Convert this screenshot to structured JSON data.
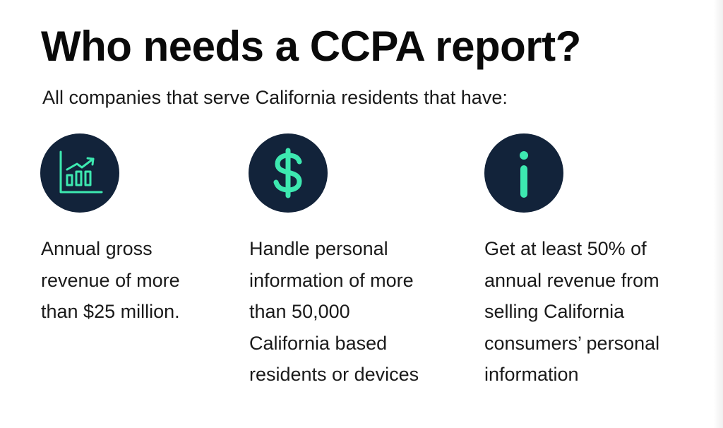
{
  "heading": {
    "title": "Who needs a CCPA report?",
    "subtitle": "All companies that serve California residents that have:"
  },
  "colors": {
    "icon_circle": "#12233a",
    "icon_accent": "#3de8b0",
    "text": "#1a1a1a"
  },
  "criteria": [
    {
      "icon": "growth-chart-icon",
      "lines": [
        "Annual gross",
        "revenue of more",
        "than $25 million."
      ]
    },
    {
      "icon": "dollar-sign-icon",
      "lines": [
        "Handle personal",
        "information of more",
        "than 50,000",
        "California based",
        "residents or devices"
      ]
    },
    {
      "icon": "info-icon",
      "lines": [
        "Get at least 50% of",
        "annual revenue from",
        "selling California",
        "consumers’ personal",
        "information"
      ]
    }
  ]
}
